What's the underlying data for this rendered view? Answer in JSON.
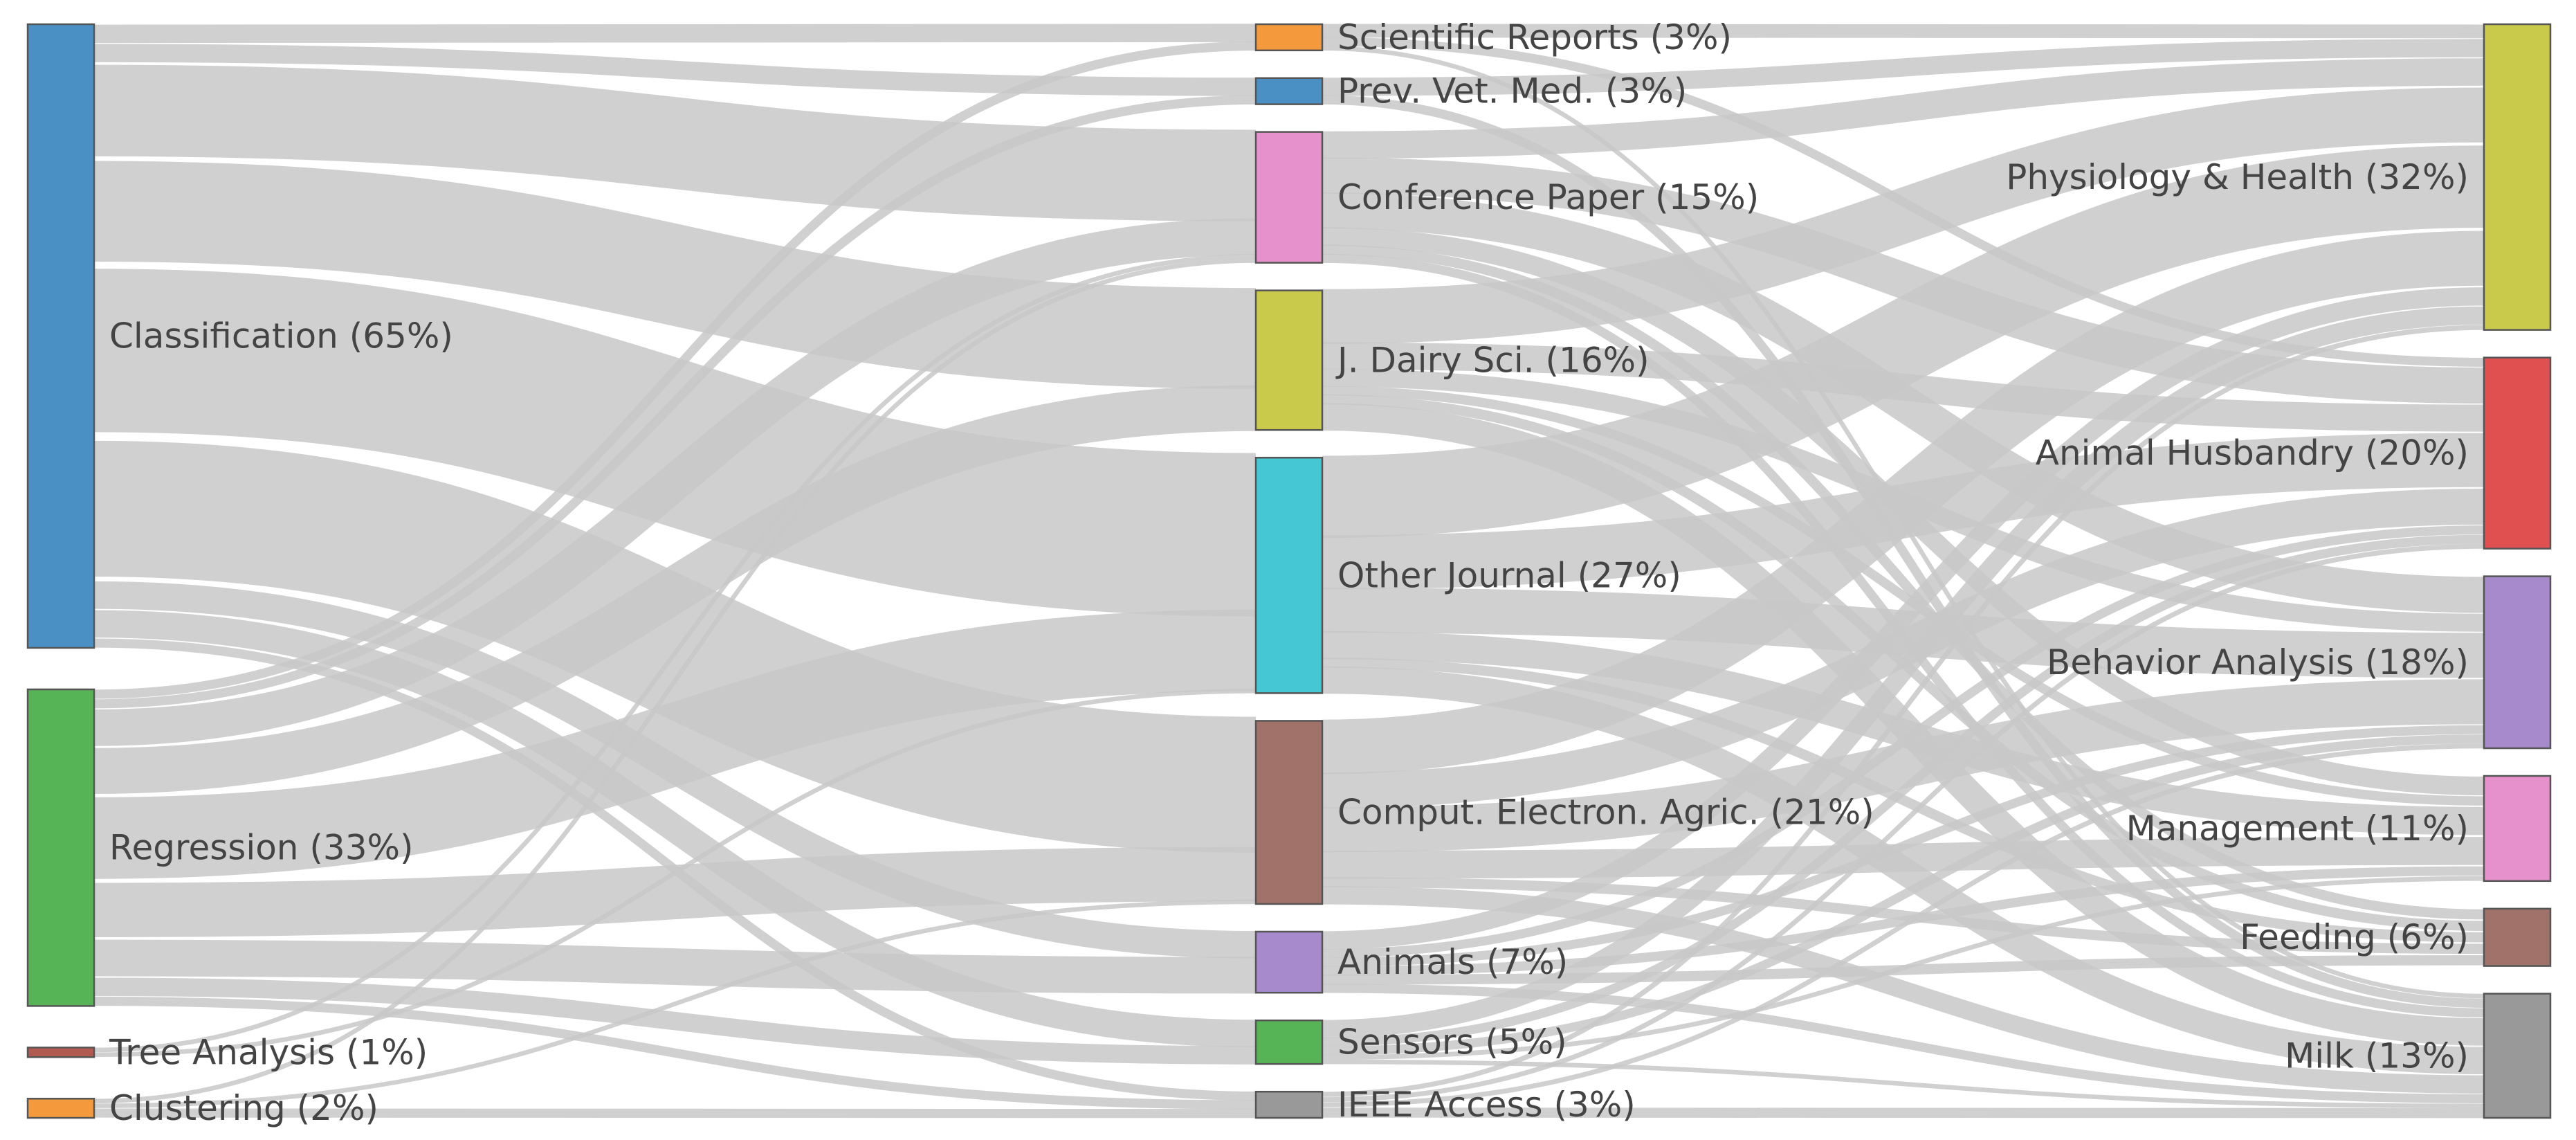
{
  "chart_data": {
    "type": "sankey",
    "columns": [
      [
        {
          "id": "classification",
          "label": "Classification (65%)",
          "percent": 65,
          "color": "#4a90c4"
        },
        {
          "id": "regression",
          "label": "Regression (33%)",
          "percent": 33,
          "color": "#56b356"
        },
        {
          "id": "tree",
          "label": "Tree Analysis (1%)",
          "percent": 1,
          "color": "#b05a50"
        },
        {
          "id": "clustering",
          "label": "Clustering (2%)",
          "percent": 2,
          "color": "#f59a3c"
        }
      ],
      [
        {
          "id": "sci",
          "label": "Scientific Reports (3%)",
          "percent": 3,
          "color": "#f59a3c"
        },
        {
          "id": "prev",
          "label": "Prev. Vet. Med. (3%)",
          "percent": 3,
          "color": "#4a90c4"
        },
        {
          "id": "conf",
          "label": "Conference Paper (15%)",
          "percent": 15,
          "color": "#e690cc"
        },
        {
          "id": "jds",
          "label": "J. Dairy Sci. (16%)",
          "percent": 16,
          "color": "#c9c94c"
        },
        {
          "id": "other",
          "label": "Other Journal (27%)",
          "percent": 27,
          "color": "#45c8d4"
        },
        {
          "id": "cea",
          "label": "Comput. Electron. Agric. (21%)",
          "percent": 21,
          "color": "#a0726a"
        },
        {
          "id": "animals",
          "label": "Animals (7%)",
          "percent": 7,
          "color": "#a78acc"
        },
        {
          "id": "sensors",
          "label": "Sensors (5%)",
          "percent": 5,
          "color": "#56b356"
        },
        {
          "id": "ieee",
          "label": "IEEE Access (3%)",
          "percent": 3,
          "color": "#999999"
        }
      ],
      [
        {
          "id": "phys",
          "label": "Physiology & Health (32%)",
          "percent": 32,
          "color": "#c9c94c"
        },
        {
          "id": "husb",
          "label": "Animal Husbandry (20%)",
          "percent": 20,
          "color": "#e05050"
        },
        {
          "id": "behav",
          "label": "Behavior Analysis (18%)",
          "percent": 18,
          "color": "#a78acc"
        },
        {
          "id": "mgmt",
          "label": "Management (11%)",
          "percent": 11,
          "color": "#e690cc"
        },
        {
          "id": "feed",
          "label": "Feeding (6%)",
          "percent": 6,
          "color": "#a0726a"
        },
        {
          "id": "milk",
          "label": "Milk (13%)",
          "percent": 13,
          "color": "#999999"
        }
      ]
    ],
    "links": [
      {
        "source": "classification",
        "target": "sci",
        "value": 2
      },
      {
        "source": "classification",
        "target": "prev",
        "value": 2
      },
      {
        "source": "classification",
        "target": "conf",
        "value": 10
      },
      {
        "source": "classification",
        "target": "jds",
        "value": 11
      },
      {
        "source": "classification",
        "target": "other",
        "value": 18
      },
      {
        "source": "classification",
        "target": "cea",
        "value": 15
      },
      {
        "source": "classification",
        "target": "animals",
        "value": 3
      },
      {
        "source": "classification",
        "target": "sensors",
        "value": 3
      },
      {
        "source": "classification",
        "target": "ieee",
        "value": 1
      },
      {
        "source": "regression",
        "target": "sci",
        "value": 1
      },
      {
        "source": "regression",
        "target": "prev",
        "value": 1
      },
      {
        "source": "regression",
        "target": "conf",
        "value": 4
      },
      {
        "source": "regression",
        "target": "jds",
        "value": 5
      },
      {
        "source": "regression",
        "target": "other",
        "value": 9
      },
      {
        "source": "regression",
        "target": "cea",
        "value": 6
      },
      {
        "source": "regression",
        "target": "animals",
        "value": 4
      },
      {
        "source": "regression",
        "target": "sensors",
        "value": 2
      },
      {
        "source": "regression",
        "target": "ieee",
        "value": 1
      },
      {
        "source": "tree",
        "target": "conf",
        "value": 0.5
      },
      {
        "source": "tree",
        "target": "other",
        "value": 0.5
      },
      {
        "source": "clustering",
        "target": "conf",
        "value": 0.5
      },
      {
        "source": "clustering",
        "target": "ieee",
        "value": 1
      },
      {
        "source": "clustering",
        "target": "cea",
        "value": 0.5
      },
      {
        "source": "sci",
        "target": "phys",
        "value": 1.5
      },
      {
        "source": "sci",
        "target": "husb",
        "value": 1
      },
      {
        "source": "sci",
        "target": "milk",
        "value": 0.5
      },
      {
        "source": "prev",
        "target": "phys",
        "value": 2
      },
      {
        "source": "prev",
        "target": "milk",
        "value": 1
      },
      {
        "source": "conf",
        "target": "phys",
        "value": 3
      },
      {
        "source": "conf",
        "target": "husb",
        "value": 4
      },
      {
        "source": "conf",
        "target": "behav",
        "value": 4
      },
      {
        "source": "conf",
        "target": "mgmt",
        "value": 2
      },
      {
        "source": "conf",
        "target": "feed",
        "value": 1
      },
      {
        "source": "conf",
        "target": "milk",
        "value": 1
      },
      {
        "source": "jds",
        "target": "phys",
        "value": 6
      },
      {
        "source": "jds",
        "target": "husb",
        "value": 3
      },
      {
        "source": "jds",
        "target": "behav",
        "value": 2
      },
      {
        "source": "jds",
        "target": "mgmt",
        "value": 1
      },
      {
        "source": "jds",
        "target": "feed",
        "value": 1
      },
      {
        "source": "jds",
        "target": "milk",
        "value": 3
      },
      {
        "source": "other",
        "target": "phys",
        "value": 9
      },
      {
        "source": "other",
        "target": "husb",
        "value": 6
      },
      {
        "source": "other",
        "target": "behav",
        "value": 5
      },
      {
        "source": "other",
        "target": "mgmt",
        "value": 3
      },
      {
        "source": "other",
        "target": "feed",
        "value": 1
      },
      {
        "source": "other",
        "target": "milk",
        "value": 3
      },
      {
        "source": "cea",
        "target": "phys",
        "value": 6
      },
      {
        "source": "cea",
        "target": "husb",
        "value": 4
      },
      {
        "source": "cea",
        "target": "behav",
        "value": 5
      },
      {
        "source": "cea",
        "target": "mgmt",
        "value": 3
      },
      {
        "source": "cea",
        "target": "feed",
        "value": 1
      },
      {
        "source": "cea",
        "target": "milk",
        "value": 2
      },
      {
        "source": "animals",
        "target": "phys",
        "value": 2
      },
      {
        "source": "animals",
        "target": "husb",
        "value": 1
      },
      {
        "source": "animals",
        "target": "behav",
        "value": 1
      },
      {
        "source": "animals",
        "target": "mgmt",
        "value": 1
      },
      {
        "source": "animals",
        "target": "feed",
        "value": 1
      },
      {
        "source": "animals",
        "target": "milk",
        "value": 1
      },
      {
        "source": "sensors",
        "target": "phys",
        "value": 2
      },
      {
        "source": "sensors",
        "target": "husb",
        "value": 1
      },
      {
        "source": "sensors",
        "target": "behav",
        "value": 1
      },
      {
        "source": "sensors",
        "target": "mgmt",
        "value": 0.5
      },
      {
        "source": "sensors",
        "target": "milk",
        "value": 0.5
      },
      {
        "source": "ieee",
        "target": "phys",
        "value": 0.5
      },
      {
        "source": "ieee",
        "target": "husb",
        "value": 0.5
      },
      {
        "source": "ieee",
        "target": "behav",
        "value": 0.5
      },
      {
        "source": "ieee",
        "target": "milk",
        "value": 1
      }
    ]
  }
}
